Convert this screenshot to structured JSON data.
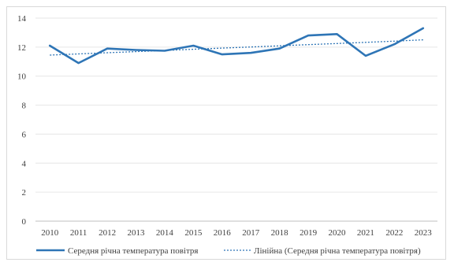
{
  "chart_data": {
    "type": "line",
    "title": "",
    "xlabel": "",
    "ylabel": "",
    "x": [
      "2010",
      "2011",
      "2012",
      "2013",
      "2014",
      "2015",
      "2016",
      "2017",
      "2018",
      "2019",
      "2020",
      "2021",
      "2022",
      "2023"
    ],
    "ylim": [
      0,
      14
    ],
    "yticks": [
      0,
      2,
      4,
      6,
      8,
      10,
      12,
      14
    ],
    "grid": true,
    "legend_position": "bottom",
    "series": [
      {
        "name": "Середня річна температура повітря",
        "style": "solid",
        "color": "#2e75b6",
        "values": [
          12.1,
          10.9,
          11.9,
          11.8,
          11.75,
          12.1,
          11.5,
          11.6,
          11.9,
          12.8,
          12.9,
          11.4,
          12.2,
          13.3
        ]
      },
      {
        "name": "Лінійна (Середня річна температура повітря)",
        "style": "dotted",
        "color": "#2e75b6",
        "values": [
          11.45,
          11.53,
          11.61,
          11.69,
          11.77,
          11.85,
          11.93,
          12.01,
          12.09,
          12.17,
          12.25,
          12.33,
          12.41,
          12.5
        ]
      }
    ]
  }
}
